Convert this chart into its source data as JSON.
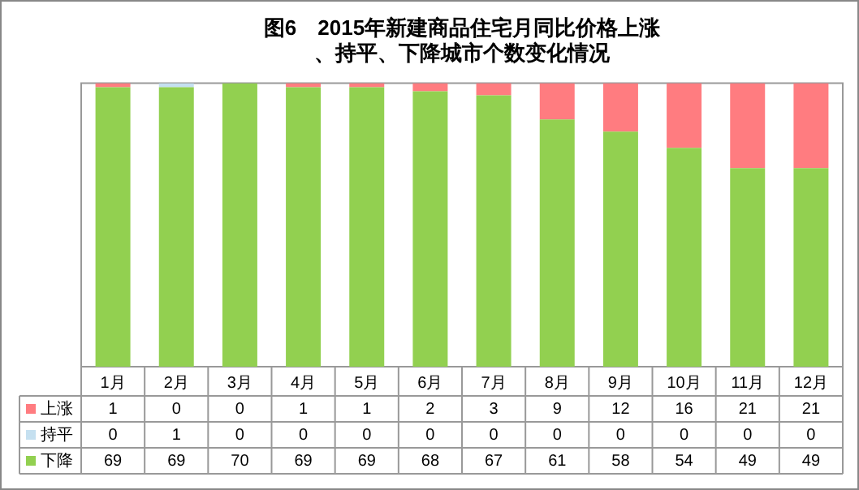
{
  "chart_data": {
    "type": "bar",
    "title": "图6　2015年新建商品住宅月同比价格上涨、持平、下降城市个数变化情况",
    "categories": [
      "1月",
      "2月",
      "3月",
      "4月",
      "5月",
      "6月",
      "7月",
      "8月",
      "9月",
      "10月",
      "11月",
      "12月"
    ],
    "series": [
      {
        "name": "下降",
        "color": "#92d050",
        "values": [
          69,
          69,
          70,
          69,
          69,
          68,
          67,
          61,
          58,
          54,
          49,
          49
        ]
      },
      {
        "name": "持平",
        "color": "#c5e0f0",
        "values": [
          0,
          1,
          0,
          0,
          0,
          0,
          0,
          0,
          0,
          0,
          0,
          0
        ]
      },
      {
        "name": "上涨",
        "color": "#ff7c80",
        "values": [
          1,
          0,
          0,
          1,
          1,
          2,
          3,
          9,
          12,
          16,
          21,
          21
        ]
      }
    ],
    "stacked": true,
    "ylim": [
      0,
      70
    ],
    "data_labels": true,
    "legend": "bottom left",
    "grid": false
  }
}
